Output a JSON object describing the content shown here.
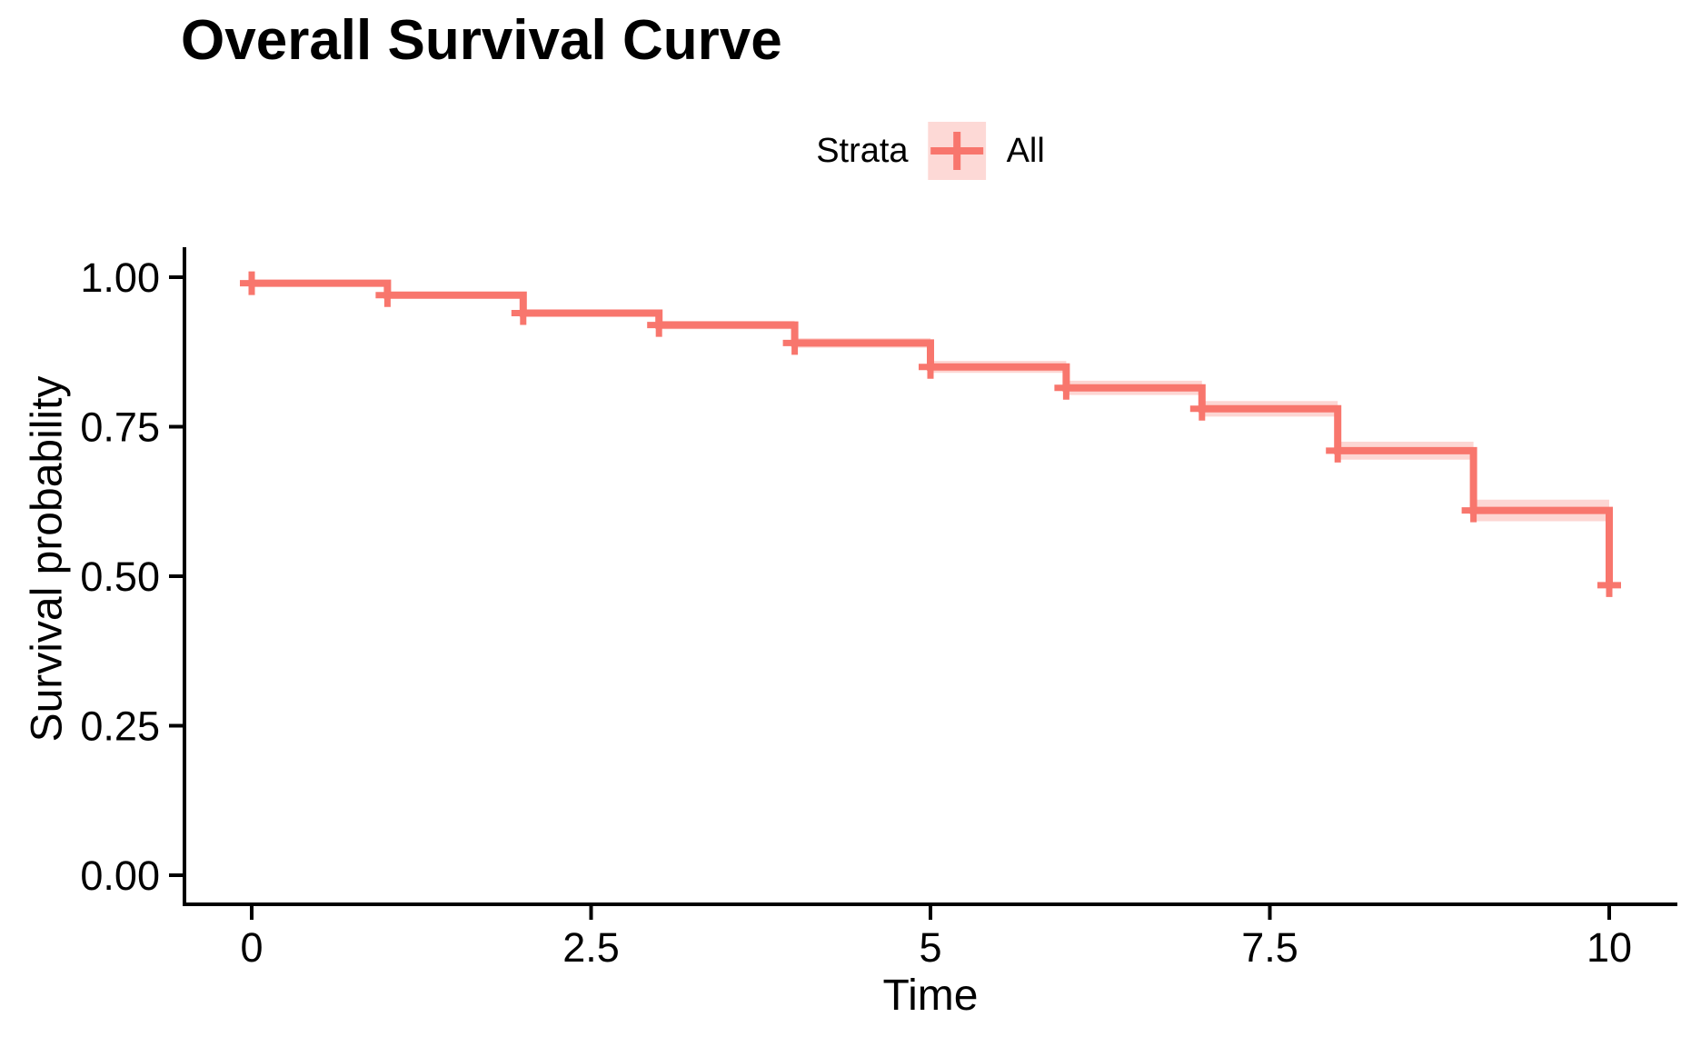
{
  "title": "Overall Survival Curve",
  "legend": {
    "title": "Strata",
    "items": [
      {
        "label": "All",
        "color": "#F8766D",
        "key_fill": "rgba(248,118,109,0.28)"
      }
    ]
  },
  "axes": {
    "x": {
      "label": "Time",
      "tick_labels": [
        "0",
        "2.5",
        "5",
        "7.5",
        "10"
      ],
      "tick_values": [
        0,
        2.5,
        5,
        7.5,
        10
      ]
    },
    "y": {
      "label": "Survival probability",
      "tick_labels": [
        "0.00",
        "0.25",
        "0.50",
        "0.75",
        "1.00"
      ],
      "tick_values": [
        0,
        0.25,
        0.5,
        0.75,
        1
      ]
    }
  },
  "chart_data": {
    "type": "line",
    "subtype": "kaplan-meier-step",
    "title": "Overall Survival Curve",
    "xlabel": "Time",
    "ylabel": "Survival probability",
    "xlim": [
      -0.5,
      10.5
    ],
    "ylim": [
      -0.05,
      1.05
    ],
    "grid": false,
    "legend_position": "top",
    "series": [
      {
        "name": "All",
        "color": "#F8766D",
        "ci_fill": "rgba(248,118,109,0.30)",
        "step_times": [
          0,
          1,
          2,
          3,
          4,
          5,
          6,
          7,
          8,
          9,
          10
        ],
        "survival": [
          0.99,
          0.97,
          0.94,
          0.92,
          0.89,
          0.85,
          0.815,
          0.78,
          0.71,
          0.61,
          0.485
        ],
        "ci_half_width": [
          0.004,
          0.005,
          0.006,
          0.007,
          0.008,
          0.01,
          0.012,
          0.013,
          0.015,
          0.018,
          0.022
        ],
        "censor_points": [
          [
            0,
            0.99
          ],
          [
            1,
            0.97
          ],
          [
            2,
            0.94
          ],
          [
            3,
            0.92
          ],
          [
            4,
            0.89
          ],
          [
            5,
            0.85
          ],
          [
            6,
            0.815
          ],
          [
            7,
            0.78
          ],
          [
            8,
            0.71
          ],
          [
            9,
            0.61
          ],
          [
            10,
            0.485
          ]
        ]
      }
    ]
  },
  "colors": {
    "line": "#F8766D",
    "ribbon": "rgba(248,118,109,0.30)",
    "axis": "#000000",
    "text": "#000000",
    "background": "#FFFFFF"
  }
}
